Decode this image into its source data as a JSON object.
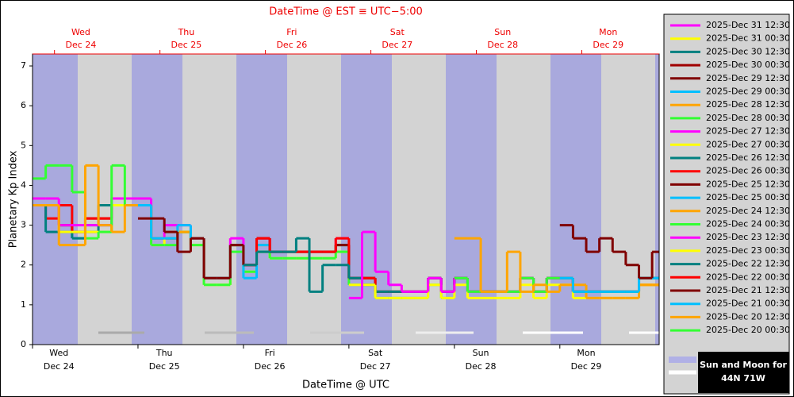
{
  "chart_data": {
    "type": "line",
    "title": "DateTime @ EST ≡ UTC−5:00",
    "xlabel": "DateTime @ UTC",
    "ylabel": "Planetary Kp Index",
    "xlim": [
      0,
      142.6
    ],
    "ylim": [
      0,
      7.3
    ],
    "yticks": [
      0,
      1,
      2,
      3,
      4,
      5,
      6,
      7
    ],
    "xticks": [
      {
        "value": 0,
        "label": "Wed"
      },
      {
        "value": 24,
        "label": "Thu"
      },
      {
        "value": 48,
        "label": "Fri"
      },
      {
        "value": 72,
        "label": "Sat"
      },
      {
        "value": 96,
        "label": "Sun"
      },
      {
        "value": 120,
        "label": "Mon"
      }
    ],
    "xtick_dates": [
      "Dec 24",
      "Dec 25",
      "Dec 26",
      "Dec 27",
      "Dec 28",
      "Dec 29"
    ],
    "x2ticks": [
      {
        "value": 5,
        "label": "Wed"
      },
      {
        "value": 29,
        "label": "Thu"
      },
      {
        "value": 53,
        "label": "Fri"
      },
      {
        "value": 77,
        "label": "Sat"
      },
      {
        "value": 101,
        "label": "Sun"
      },
      {
        "value": 125,
        "label": "Mon"
      }
    ],
    "x2tick_dates": [
      "Dec 24",
      "Dec 25",
      "Dec 26",
      "Dec 27",
      "Dec 28",
      "Dec 29"
    ],
    "legend_note": [
      "Sun and Moon for",
      "44N 71W"
    ],
    "series": [
      {
        "name": "2025-Dec 31 12:30",
        "color": "#ff00ff",
        "x": [],
        "values": []
      },
      {
        "name": "2025-Dec 31 00:30",
        "color": "#ffff00",
        "x": [],
        "values": []
      },
      {
        "name": "2025-Dec 30 12:30",
        "color": "#008080",
        "x": [],
        "values": []
      },
      {
        "name": "2025-Dec 30 00:30",
        "color": "#a00000",
        "x": [],
        "values": []
      },
      {
        "name": "2025-Dec 29 12:30",
        "color": "#800000",
        "x": [
          120,
          123,
          126,
          129,
          132,
          135,
          138,
          141
        ],
        "values": [
          3.0,
          2.67,
          2.33,
          2.67,
          2.33,
          2.0,
          1.67,
          2.33
        ]
      },
      {
        "name": "2025-Dec 29 00:30",
        "color": "#00bfff",
        "x": [
          120,
          123,
          126,
          129,
          132,
          135,
          138,
          141
        ],
        "values": [
          1.67,
          1.33,
          1.33,
          1.33,
          1.33,
          1.33,
          1.67,
          1.67
        ]
      },
      {
        "name": "2025-Dec 28 12:30",
        "color": "#ffa500",
        "x": [
          96,
          99,
          102,
          105,
          108,
          111,
          114,
          117,
          120,
          123,
          126,
          129,
          132,
          135,
          138,
          141
        ],
        "values": [
          2.67,
          2.67,
          1.33,
          1.33,
          2.33,
          1.33,
          1.5,
          1.33,
          1.5,
          1.5,
          1.17,
          1.17,
          1.17,
          1.17,
          1.5,
          1.5
        ]
      },
      {
        "name": "2025-Dec 28 00:30",
        "color": "#33ff33",
        "x": [
          96,
          99,
          102,
          105,
          108,
          111,
          114,
          117,
          120,
          123,
          126,
          129,
          132,
          135,
          138,
          141
        ],
        "values": [
          1.67,
          1.33,
          1.33,
          1.33,
          1.33,
          1.67,
          1.33,
          1.67,
          1.67,
          1.33,
          1.33,
          1.33,
          1.33,
          1.33,
          1.67,
          1.67
        ]
      },
      {
        "name": "2025-Dec 27 12:30",
        "color": "#ff00ff",
        "x": [
          72,
          75,
          78,
          81,
          84,
          87,
          90,
          93,
          96,
          99,
          102,
          105,
          108,
          111,
          114,
          117,
          120,
          123,
          126,
          129,
          132,
          135,
          138,
          141
        ],
        "values": [
          1.17,
          2.83,
          1.83,
          1.5,
          1.33,
          1.33,
          1.67,
          1.33,
          1.67,
          1.33,
          1.33,
          1.33,
          1.33,
          1.67,
          1.33,
          1.67,
          1.67,
          1.33,
          1.33,
          1.33,
          1.33,
          1.33,
          1.67,
          1.67
        ]
      },
      {
        "name": "2025-Dec 27 00:30",
        "color": "#ffff00",
        "x": [
          72,
          75,
          78,
          81,
          84,
          87,
          90,
          93,
          96,
          99,
          102,
          105,
          108,
          111,
          114,
          117,
          120,
          123,
          126,
          129,
          132,
          135,
          138,
          141
        ],
        "values": [
          1.5,
          1.5,
          1.17,
          1.17,
          1.17,
          1.17,
          1.5,
          1.17,
          1.5,
          1.17,
          1.17,
          1.17,
          1.17,
          1.5,
          1.17,
          1.5,
          1.5,
          1.17,
          1.17,
          1.17,
          1.17,
          1.17,
          1.5,
          1.5
        ]
      },
      {
        "name": "2025-Dec 26 12:30",
        "color": "#008080",
        "x": [
          48,
          51,
          54,
          57,
          60,
          63,
          66,
          69,
          72,
          75,
          78,
          81,
          84,
          87,
          90,
          93,
          96,
          99,
          102,
          105,
          108,
          111,
          114,
          117,
          120,
          123,
          126,
          129,
          132,
          135,
          138,
          141
        ],
        "values": [
          2.0,
          2.33,
          2.33,
          2.33,
          2.67,
          1.33,
          2.0,
          2.0,
          1.67,
          1.5,
          1.33,
          1.33,
          1.33,
          1.33,
          1.67,
          1.33,
          1.67,
          1.33,
          1.33,
          1.33,
          1.33,
          1.67,
          1.33,
          1.67,
          1.67,
          1.33,
          1.33,
          1.33,
          1.33,
          1.33,
          1.67,
          1.67
        ]
      },
      {
        "name": "2025-Dec 26 00:30",
        "color": "#ff0000",
        "x": [
          48,
          51,
          54,
          57,
          60,
          63,
          66,
          69,
          72,
          75,
          78,
          81,
          84,
          87,
          90,
          93,
          96,
          99,
          102,
          105,
          108,
          111,
          114,
          117,
          120,
          123,
          126,
          129,
          132,
          135,
          138,
          141
        ],
        "values": [
          2.0,
          2.67,
          2.33,
          2.33,
          2.33,
          2.33,
          2.33,
          2.67,
          1.67,
          1.67,
          1.33,
          1.33,
          1.33,
          1.33,
          1.67,
          1.33,
          1.67,
          1.33,
          1.33,
          1.33,
          1.33,
          1.67,
          1.33,
          1.67,
          1.67,
          1.33,
          1.33,
          1.33,
          1.33,
          1.33,
          1.5,
          1.5
        ]
      },
      {
        "name": "2025-Dec 25 12:30",
        "color": "#800000",
        "x": [
          24,
          27,
          30,
          33,
          36,
          39,
          42,
          45,
          48,
          51,
          54,
          57,
          60,
          63,
          66,
          69,
          72,
          75,
          78,
          81,
          84,
          87,
          90,
          93,
          96,
          99,
          102,
          105,
          108,
          111,
          114,
          117,
          120,
          123,
          126,
          129,
          132,
          135,
          138,
          141
        ],
        "values": [
          3.17,
          3.17,
          2.83,
          2.33,
          2.67,
          1.67,
          1.67,
          2.5,
          2.0,
          2.67,
          2.33,
          2.33,
          2.33,
          2.33,
          2.33,
          2.5,
          1.67,
          1.67,
          1.33,
          1.33,
          1.33,
          1.33,
          1.67,
          1.33,
          1.67,
          1.33,
          1.33,
          1.33,
          1.33,
          1.67,
          1.33,
          1.67,
          1.67,
          1.33,
          1.33,
          1.33,
          1.33,
          1.33,
          1.67,
          1.67
        ]
      },
      {
        "name": "2025-Dec 25 00:30",
        "color": "#00bfff",
        "x": [
          24,
          27,
          30,
          33,
          36,
          39,
          42,
          45,
          48,
          51,
          54,
          57,
          60,
          63,
          66,
          69,
          72,
          75,
          78,
          81,
          84,
          87,
          90,
          93,
          96,
          99,
          102,
          105,
          108,
          111,
          114,
          117,
          120,
          123,
          126,
          129,
          132,
          135,
          138,
          141
        ],
        "values": [
          3.5,
          2.67,
          2.67,
          3.0,
          2.67,
          1.67,
          1.67,
          2.5,
          1.67,
          2.5,
          2.33,
          2.33,
          2.33,
          2.33,
          2.33,
          2.5,
          1.67,
          1.67,
          1.33,
          1.33,
          1.33,
          1.33,
          1.67,
          1.33,
          1.67,
          1.33,
          1.33,
          1.33,
          1.33,
          1.67,
          1.33,
          1.67,
          1.67,
          1.33,
          1.33,
          1.33,
          1.33,
          1.33,
          1.67,
          1.67
        ]
      },
      {
        "name": "2025-Dec 24 12:30",
        "color": "#ffa500",
        "x": [
          0,
          3,
          6,
          9,
          12,
          15,
          18,
          21,
          24,
          27,
          30,
          33,
          36,
          39,
          42,
          45,
          48,
          51,
          54,
          57,
          60,
          63,
          66,
          69,
          72,
          75,
          78,
          81,
          84,
          87,
          90,
          93
        ],
        "values": [
          3.5,
          3.5,
          2.5,
          2.5,
          4.5,
          3.0,
          2.83,
          3.5,
          3.5,
          2.67,
          2.67,
          2.83,
          2.67,
          1.67,
          1.67,
          2.5,
          2.0,
          2.5,
          2.33,
          2.33,
          2.33,
          2.33,
          2.33,
          2.5,
          1.67,
          1.67,
          1.33,
          1.33,
          1.33,
          1.33,
          1.67,
          1.33
        ]
      },
      {
        "name": "2025-Dec 24 00:30",
        "color": "#33ff33",
        "x": [
          0,
          3,
          6,
          9,
          12,
          15,
          18,
          21,
          24,
          27,
          30,
          33,
          36,
          39,
          42,
          45,
          48,
          51,
          54,
          57,
          60,
          63,
          66,
          69,
          72,
          75,
          78,
          81,
          84,
          87,
          90,
          93
        ],
        "values": [
          4.17,
          4.5,
          4.5,
          3.83,
          2.67,
          2.83,
          4.5,
          3.5,
          3.5,
          2.5,
          2.5,
          2.83,
          2.5,
          1.5,
          1.5,
          2.33,
          1.83,
          2.33,
          2.17,
          2.17,
          2.17,
          2.17,
          2.17,
          2.33,
          1.5,
          1.5,
          1.17,
          1.17,
          1.17,
          1.17,
          1.5,
          1.17
        ]
      },
      {
        "name": "2025-Dec 23 12:30",
        "color": "#ff00ff",
        "x": [
          0,
          3,
          6,
          9,
          12,
          15,
          18,
          21,
          24,
          27,
          30,
          33,
          36,
          39,
          42,
          45,
          48,
          51,
          54,
          57,
          60,
          63,
          66,
          69
        ],
        "values": [
          3.67,
          3.67,
          3.0,
          3.0,
          3.0,
          3.0,
          3.67,
          3.67,
          3.67,
          2.67,
          3.0,
          3.0,
          2.67,
          1.67,
          1.67,
          2.67,
          2.0,
          2.67,
          2.33,
          2.33,
          2.33,
          2.33,
          2.33,
          2.67
        ]
      },
      {
        "name": "2025-Dec 23 00:30",
        "color": "#ffff00",
        "x": [
          0,
          3,
          6,
          9,
          12,
          15,
          18,
          21,
          24,
          27,
          30,
          33,
          36,
          39,
          42,
          45,
          48,
          51,
          54,
          57,
          60,
          63,
          66,
          69
        ],
        "values": [
          3.5,
          3.5,
          2.83,
          2.83,
          2.83,
          2.83,
          3.5,
          3.5,
          3.5,
          2.5,
          2.83,
          2.83,
          2.5,
          1.5,
          1.5,
          2.5,
          1.83,
          2.33,
          2.17,
          2.17,
          2.17,
          2.17,
          2.17,
          2.33
        ]
      },
      {
        "name": "2025-Dec 22 12:30",
        "color": "#008080",
        "x": [
          0,
          3,
          6,
          9,
          12,
          15,
          18,
          21,
          24,
          27,
          30,
          33,
          36,
          39,
          42,
          45
        ],
        "values": [
          3.5,
          2.83,
          2.83,
          2.67,
          2.83,
          3.5,
          3.5,
          3.5,
          3.5,
          2.67,
          2.67,
          2.83,
          2.67,
          1.67,
          1.67,
          2.5
        ]
      },
      {
        "name": "2025-Dec 22 00:30",
        "color": "#ff0000",
        "x": [
          0,
          3,
          6,
          9,
          12,
          15,
          18,
          21,
          24,
          27,
          30,
          33,
          36,
          39,
          42,
          45
        ],
        "values": [
          3.5,
          3.17,
          3.5,
          2.83,
          3.17,
          3.17,
          3.5,
          3.5,
          3.5,
          2.67,
          2.67,
          2.83,
          2.67,
          1.67,
          1.67,
          2.5
        ]
      },
      {
        "name": "2025-Dec 21 12:30",
        "color": "#800000",
        "x": [
          0,
          3,
          6,
          9,
          12,
          15,
          18,
          21
        ],
        "values": [
          3.5,
          3.5,
          3.0,
          2.83,
          3.17,
          3.17,
          3.5,
          3.5
        ]
      },
      {
        "name": "2025-Dec 21 00:30",
        "color": "#00bfff",
        "x": [
          0,
          3,
          6,
          9,
          12,
          15,
          18,
          21
        ],
        "values": [
          3.5,
          3.5,
          3.5,
          2.67,
          3.0,
          3.0,
          3.5,
          3.5
        ]
      },
      {
        "name": "2025-Dec 20 12:30",
        "color": "#ffa500",
        "x": [],
        "values": []
      },
      {
        "name": "2025-Dec 20 00:30",
        "color": "#33ff33",
        "x": [],
        "values": []
      }
    ]
  }
}
